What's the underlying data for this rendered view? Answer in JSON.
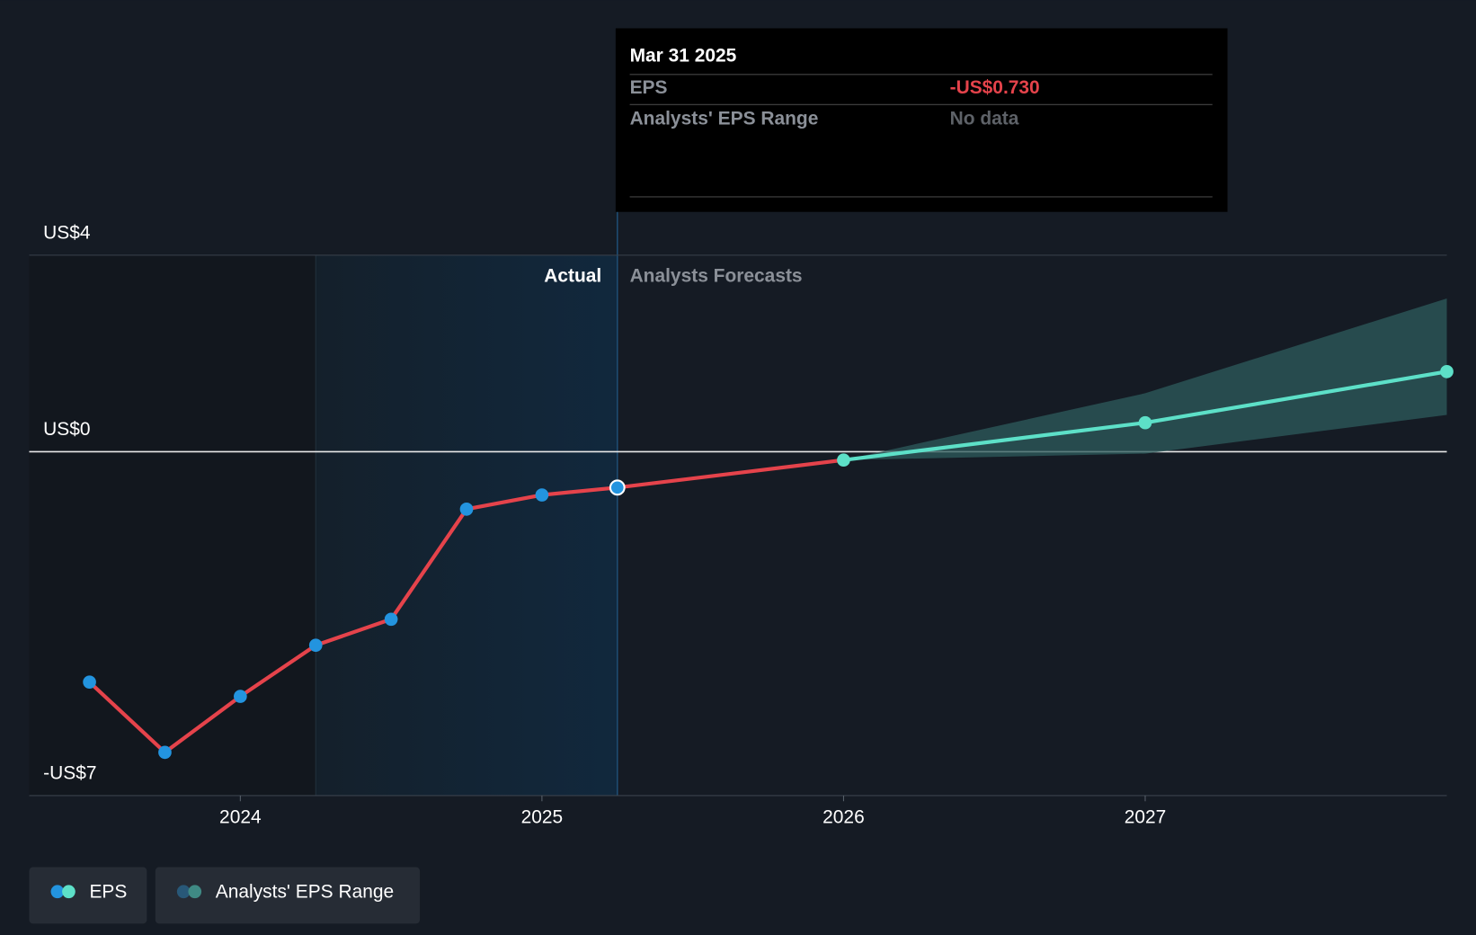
{
  "chart_data": {
    "type": "line",
    "xlim": [
      2023.3,
      2028
    ],
    "xticks": [
      2024,
      2025,
      2026,
      2027
    ],
    "ylim": [
      -7,
      4
    ],
    "yticks": [
      {
        "value": 4,
        "label": "US$4"
      },
      {
        "value": 0,
        "label": "US$0"
      },
      {
        "value": -7,
        "label": "-US$7"
      }
    ],
    "annotations": [
      "Actual",
      "Analysts Forecasts"
    ],
    "series": [
      {
        "name": "EPS",
        "color": "#e5434b",
        "marker_color": "#2394df",
        "x": [
          2023.5,
          2023.75,
          2024,
          2024.25,
          2024.5,
          2024.75,
          2025,
          2025.25
        ],
        "values": [
          -4.69,
          -6.12,
          -4.98,
          -3.94,
          -3.41,
          -1.17,
          -0.88,
          -0.73
        ]
      },
      {
        "name": "Analysts' EPS Range",
        "color": "#5de0c8",
        "x": [
          2026,
          2027,
          2028
        ],
        "values": [
          -0.17,
          0.59,
          1.63
        ],
        "low": [
          -0.17,
          -0.04,
          0.75
        ],
        "high": [
          -0.17,
          1.19,
          3.12
        ]
      }
    ],
    "tooltip": {
      "title": "Mar 31 2025",
      "rows": [
        [
          "EPS",
          "-US$0.730"
        ],
        [
          "Analysts' EPS Range",
          "No data"
        ]
      ]
    }
  }
}
